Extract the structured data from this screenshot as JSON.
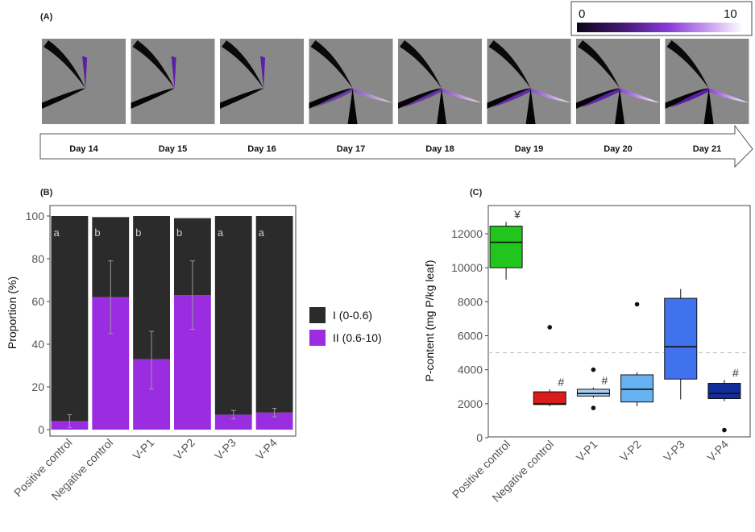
{
  "panel_a": {
    "label": "(A)",
    "colorbar": {
      "min_label": "0",
      "max_label": "10",
      "min": 0,
      "max": 10
    },
    "days": [
      "Day 14",
      "Day 15",
      "Day 16",
      "Day 17",
      "Day 18",
      "Day 19",
      "Day 20",
      "Day 21"
    ]
  },
  "chart_data": [
    {
      "panel_label": "(B)",
      "type": "bar",
      "stacked": true,
      "categories": [
        "Positive control",
        "Negative control",
        "V-P1",
        "V-P2",
        "V-P3",
        "V-P4"
      ],
      "series": [
        {
          "name": "II (0.6-10)",
          "color": "#9b2de0",
          "values": [
            4,
            62,
            33,
            63,
            7,
            8
          ]
        },
        {
          "name": "I (0-0.6)",
          "color": "#2b2b2b",
          "values": [
            96,
            37.5,
            67,
            36,
            93,
            92
          ]
        }
      ],
      "error_bars": {
        "center": [
          4,
          62,
          33,
          63,
          7,
          8
        ],
        "lower": [
          1,
          45,
          19,
          47,
          5,
          6
        ],
        "upper": [
          7,
          79,
          46,
          79,
          9,
          10
        ]
      },
      "letters": [
        "a",
        "b",
        "b",
        "b",
        "a",
        "a"
      ],
      "ylabel": "Proportion (%)",
      "ylim": [
        0,
        100
      ],
      "yticks": [
        "0",
        "20",
        "40",
        "60",
        "80",
        "100"
      ],
      "legend": [
        "I (0-0.6)",
        "II (0.6-10)"
      ]
    },
    {
      "panel_label": "(C)",
      "type": "box",
      "categories": [
        "Positive control",
        "Negative control",
        "V-P1",
        "V-P2",
        "V-P3",
        "V-P4"
      ],
      "colors": [
        "#22c41e",
        "#d91c1c",
        "#a8cdf2",
        "#66b2f0",
        "#3f72ec",
        "#102d9c"
      ],
      "boxes": [
        {
          "min": 9300,
          "q1": 10000,
          "median": 11500,
          "q3": 12450,
          "max": 12700,
          "outliers": []
        },
        {
          "min": 1850,
          "q1": 1950,
          "median": 2000,
          "q3": 2700,
          "max": 2850,
          "outliers": [
            6500
          ]
        },
        {
          "min": 2350,
          "q1": 2450,
          "median": 2600,
          "q3": 2850,
          "max": 2950,
          "outliers": [
            1750,
            4000
          ]
        },
        {
          "min": 1850,
          "q1": 2100,
          "median": 2850,
          "q3": 3700,
          "max": 3850,
          "outliers": [
            7850
          ]
        },
        {
          "min": 2250,
          "q1": 3450,
          "median": 5350,
          "q3": 8200,
          "max": 8750,
          "outliers": []
        },
        {
          "min": 2150,
          "q1": 2300,
          "median": 2600,
          "q3": 3200,
          "max": 3400,
          "outliers": [
            450
          ]
        }
      ],
      "marks": [
        "¥",
        "#",
        "#",
        "",
        "",
        "#"
      ],
      "reference_line": 5000,
      "ylabel": "P-content (mg P/kg leaf)",
      "ylim": [
        0,
        13000
      ],
      "yticks": [
        "0",
        "2000",
        "4000",
        "6000",
        "8000",
        "10000",
        "12000"
      ]
    }
  ]
}
